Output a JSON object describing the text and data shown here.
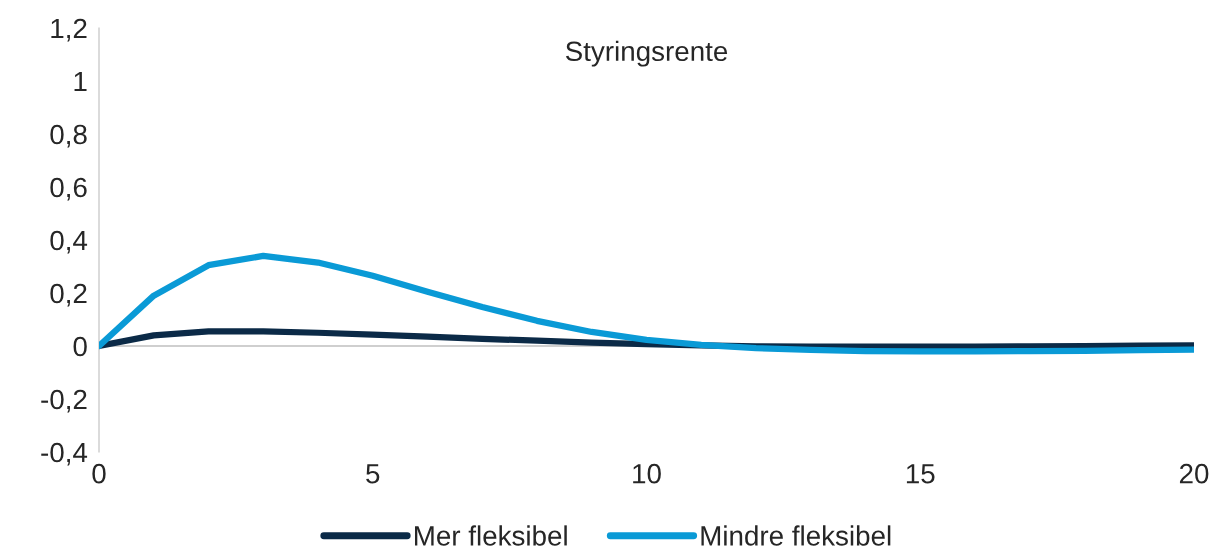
{
  "chart_data": {
    "type": "line",
    "title": "Styringsrente",
    "x": [
      0,
      1,
      2,
      3,
      4,
      5,
      6,
      7,
      8,
      9,
      10,
      11,
      12,
      13,
      14,
      15,
      16,
      17,
      18,
      19,
      20
    ],
    "series": [
      {
        "name": "Mer fleksibel",
        "color": "#0b2a47",
        "values": [
          0,
          0.04,
          0.055,
          0.055,
          0.05,
          0.043,
          0.035,
          0.027,
          0.02,
          0.013,
          0.007,
          0.002,
          -0.001,
          -0.002,
          -0.002,
          -0.002,
          -0.002,
          -0.001,
          0,
          0.001,
          0.002
        ]
      },
      {
        "name": "Mindre fleksibel",
        "color": "#0a9ad6",
        "values": [
          0,
          0.19,
          0.305,
          0.34,
          0.315,
          0.265,
          0.205,
          0.147,
          0.095,
          0.053,
          0.023,
          0.004,
          -0.008,
          -0.015,
          -0.019,
          -0.02,
          -0.02,
          -0.019,
          -0.018,
          -0.016,
          -0.014
        ]
      }
    ],
    "xlim": [
      0,
      20
    ],
    "xticks": [
      0,
      5,
      10,
      15,
      20
    ],
    "ylim": [
      -0.4,
      1.2
    ],
    "yticks": [
      {
        "value": -0.4,
        "label": "-0,4"
      },
      {
        "value": -0.2,
        "label": "-0,2"
      },
      0,
      {
        "value": 0.2,
        "label": "0,2"
      },
      {
        "value": 0.4,
        "label": "0,4"
      },
      {
        "value": 0.6,
        "label": "0,6"
      },
      {
        "value": 0.8,
        "label": "0,8"
      },
      1,
      {
        "value": 1.2,
        "label": "1,2"
      }
    ],
    "ref_lines": [
      {
        "axis": "y",
        "value": 0,
        "color": "#bfbfbf"
      }
    ],
    "legend": "bottom",
    "grid": false
  }
}
